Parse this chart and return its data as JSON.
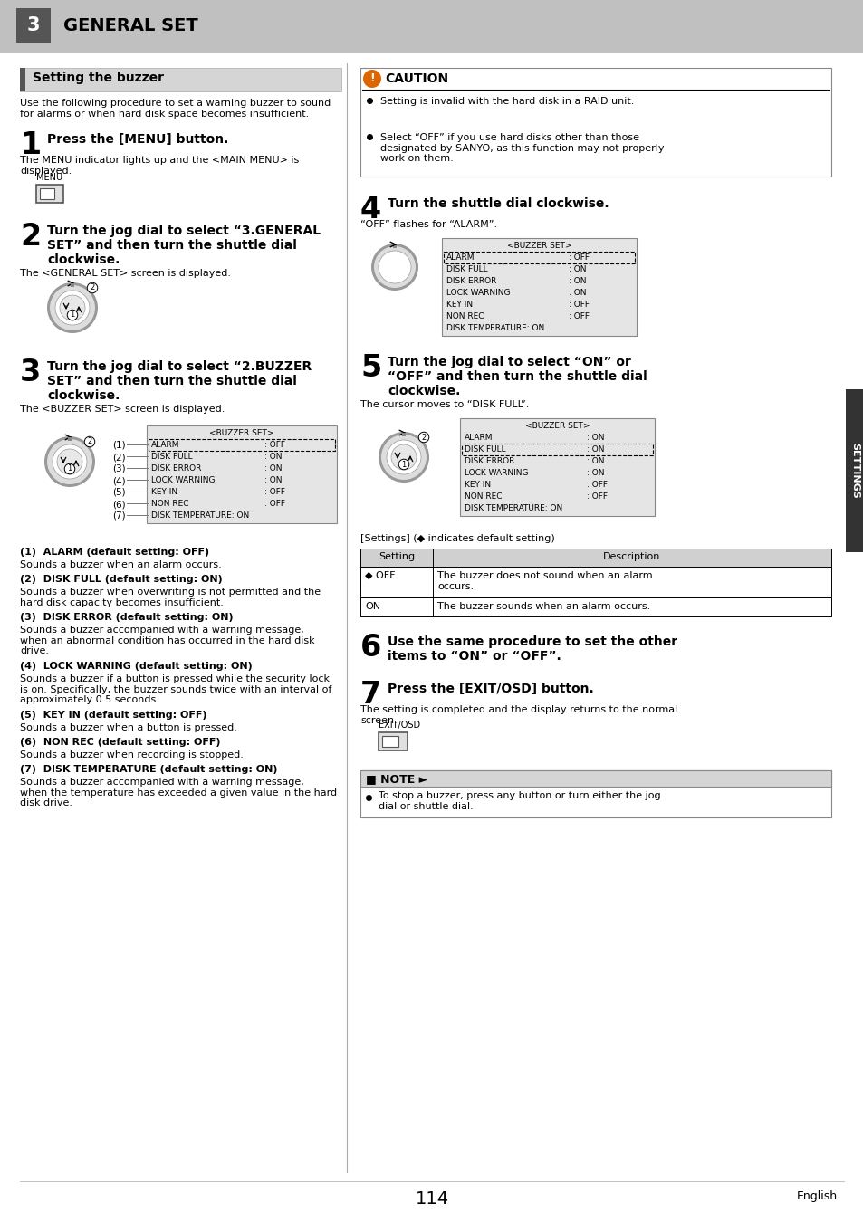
{
  "page_num": "114",
  "page_lang": "English",
  "header_num": "3",
  "header_title": "GENERAL SET",
  "section_title": "Setting the buzzer",
  "caution_title": "CAUTION",
  "caution_bullets": [
    "Setting is invalid with the hard disk in a RAID unit.",
    "Select “OFF” if you use hard disks other than those\ndesignated by SANYO, as this function may not properly\nwork on them."
  ],
  "intro_text": "Use the following procedure to set a warning buzzer to sound\nfor alarms or when hard disk space becomes insufficient.",
  "step1_title": "Press the [MENU] button.",
  "step1_body": "The MENU indicator lights up and the <MAIN MENU> is\ndisplayed.",
  "step1_button": "MENU",
  "step2_title": "Turn the jog dial to select “3.GENERAL\nSET” and then turn the shuttle dial\nclockwise.",
  "step2_body": "The <GENERAL SET> screen is displayed.",
  "step3_title": "Turn the jog dial to select “2.BUZZER\nSET” and then turn the shuttle dial\nclockwise.",
  "step3_body": "The <BUZZER SET> screen is displayed.",
  "step3_screen_lines": [
    [
      "ALARM",
      ": OFF",
      true
    ],
    [
      "DISK FULL",
      ": ON",
      false
    ],
    [
      "DISK ERROR",
      ": ON",
      false
    ],
    [
      "LOCK WARNING",
      ": ON",
      false
    ],
    [
      "KEY IN",
      ": OFF",
      false
    ],
    [
      "NON REC",
      ": OFF",
      false
    ],
    [
      "DISK TEMPERATURE: ON",
      "",
      false
    ]
  ],
  "step3_callouts": [
    "(1)",
    "(2)",
    "(3)",
    "(4)",
    "(5)",
    "(6)",
    "(7)"
  ],
  "step4_title": "Turn the shuttle dial clockwise.",
  "step4_body": "“OFF” flashes for “ALARM”.",
  "step4_screen_lines": [
    [
      "ALARM",
      ": OFF",
      true
    ],
    [
      "DISK FULL",
      ": ON",
      false
    ],
    [
      "DISK ERROR",
      ": ON",
      false
    ],
    [
      "LOCK WARNING",
      ": ON",
      false
    ],
    [
      "KEY IN",
      ": OFF",
      false
    ],
    [
      "NON REC",
      ": OFF",
      false
    ],
    [
      "DISK TEMPERATURE: ON",
      "",
      false
    ]
  ],
  "step5_title": "Turn the jog dial to select “ON” or\n“OFF” and then turn the shuttle dial\nclockwise.",
  "step5_body": "The cursor moves to “DISK FULL”.",
  "step5_screen_lines": [
    [
      "ALARM",
      ": ON",
      false
    ],
    [
      "DISK FULL",
      ": ON",
      true
    ],
    [
      "DISK ERROR",
      ": ON",
      false
    ],
    [
      "LOCK WARNING",
      ": ON",
      false
    ],
    [
      "KEY IN",
      ": OFF",
      false
    ],
    [
      "NON REC",
      ": OFF",
      false
    ],
    [
      "DISK TEMPERATURE: ON",
      "",
      false
    ]
  ],
  "step6_title": "Use the same procedure to set the other\nitems to “ON” or “OFF”.",
  "step7_title": "Press the [EXIT/OSD] button.",
  "step7_body": "The setting is completed and the display returns to the normal\nscreen.",
  "step7_button": "EXIT/OSD",
  "settings_note": "[Settings] (◆ indicates default setting)",
  "settings_table_header": [
    "Setting",
    "Description"
  ],
  "settings_table_rows": [
    [
      "◆ OFF",
      "The buzzer does not sound when an alarm\noccurs."
    ],
    [
      "ON",
      "The buzzer sounds when an alarm occurs."
    ]
  ],
  "note_text": "To stop a buzzer, press any button or turn either the jog\ndial or shuttle dial.",
  "item_descriptions": [
    [
      "(1)  ALARM (default setting: OFF)",
      "Sounds a buzzer when an alarm occurs."
    ],
    [
      "(2)  DISK FULL (default setting: ON)",
      "Sounds a buzzer when overwriting is not permitted and the\nhard disk capacity becomes insufficient."
    ],
    [
      "(3)  DISK ERROR (default setting: ON)",
      "Sounds a buzzer accompanied with a warning message,\nwhen an abnormal condition has occurred in the hard disk\ndrive."
    ],
    [
      "(4)  LOCK WARNING (default setting: ON)",
      "Sounds a buzzer if a button is pressed while the security lock\nis on. Specifically, the buzzer sounds twice with an interval of\napproximately 0.5 seconds."
    ],
    [
      "(5)  KEY IN (default setting: OFF)",
      "Sounds a buzzer when a button is pressed."
    ],
    [
      "(6)  NON REC (default setting: OFF)",
      "Sounds a buzzer when recording is stopped."
    ],
    [
      "(7)  DISK TEMPERATURE (default setting: ON)",
      "Sounds a buzzer accompanied with a warning message,\nwhen the temperature has exceeded a given value in the hard\ndisk drive."
    ]
  ]
}
